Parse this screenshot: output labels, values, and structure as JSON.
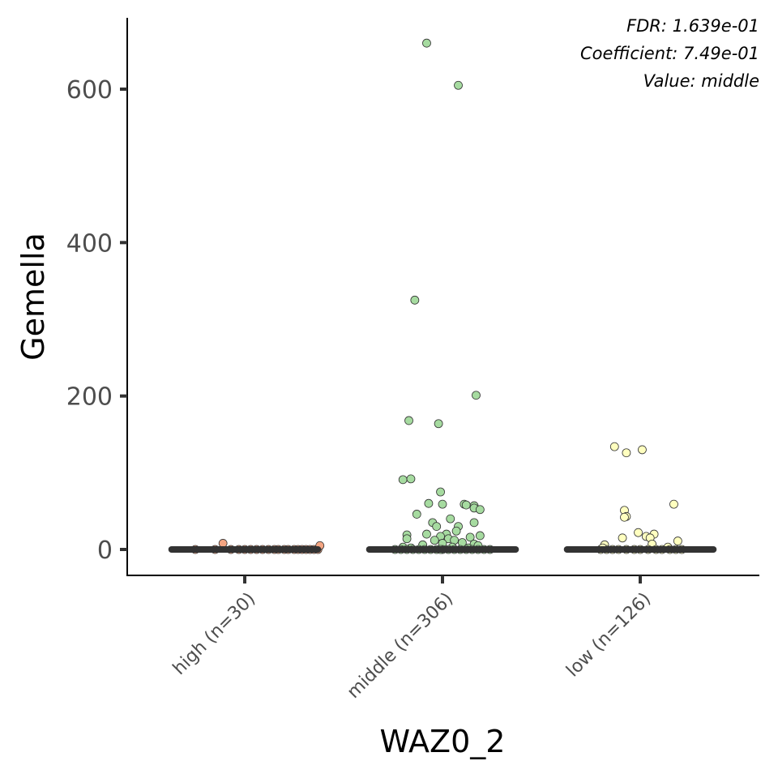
{
  "chart_data": {
    "type": "scatter",
    "subtype": "jitter-strip-with-median",
    "title": "",
    "xlabel": "WAZ0_2",
    "ylabel": "Gemella",
    "ylim": [
      -33,
      690
    ],
    "yticks": [
      0,
      200,
      400,
      600
    ],
    "grid": false,
    "legend": "none",
    "annotations": [
      "FDR: 1.639e-01",
      "Coefficient: 7.49e-01",
      "Value: middle"
    ],
    "categories": [
      "high (n=30)",
      "middle (n=306)",
      "low (n=126)"
    ],
    "colors": [
      "#F4A582",
      "#A6DBA0",
      "#FFFFBF"
    ],
    "medians": [
      0,
      0,
      0
    ],
    "series": [
      {
        "category": "high (n=30)",
        "points": [
          {
            "dx": -0.25,
            "y": 0
          },
          {
            "dx": -0.15,
            "y": 0
          },
          {
            "dx": -0.11,
            "y": 8
          },
          {
            "dx": -0.07,
            "y": 0
          },
          {
            "dx": -0.03,
            "y": 0
          },
          {
            "dx": 0.0,
            "y": 0
          },
          {
            "dx": 0.03,
            "y": 0
          },
          {
            "dx": 0.06,
            "y": 0
          },
          {
            "dx": 0.09,
            "y": 0
          },
          {
            "dx": 0.12,
            "y": 0
          },
          {
            "dx": 0.15,
            "y": 0
          },
          {
            "dx": 0.17,
            "y": 0
          },
          {
            "dx": 0.2,
            "y": 0
          },
          {
            "dx": 0.22,
            "y": 0
          },
          {
            "dx": 0.25,
            "y": 0
          },
          {
            "dx": 0.27,
            "y": 0
          },
          {
            "dx": 0.29,
            "y": 0
          },
          {
            "dx": 0.31,
            "y": 0
          },
          {
            "dx": 0.33,
            "y": 0
          },
          {
            "dx": 0.35,
            "y": 0
          },
          {
            "dx": 0.37,
            "y": 0
          },
          {
            "dx": 0.38,
            "y": 5
          }
        ]
      },
      {
        "category": "middle (n=306)",
        "points": [
          {
            "dx": -0.08,
            "y": 660
          },
          {
            "dx": 0.08,
            "y": 605
          },
          {
            "dx": -0.14,
            "y": 325
          },
          {
            "dx": 0.17,
            "y": 201
          },
          {
            "dx": -0.17,
            "y": 168
          },
          {
            "dx": -0.02,
            "y": 164
          },
          {
            "dx": -0.2,
            "y": 91
          },
          {
            "dx": -0.16,
            "y": 92
          },
          {
            "dx": -0.01,
            "y": 75
          },
          {
            "dx": -0.07,
            "y": 60
          },
          {
            "dx": 0.0,
            "y": 59
          },
          {
            "dx": 0.11,
            "y": 59
          },
          {
            "dx": 0.12,
            "y": 58
          },
          {
            "dx": 0.16,
            "y": 57
          },
          {
            "dx": 0.16,
            "y": 54
          },
          {
            "dx": 0.19,
            "y": 52
          },
          {
            "dx": -0.13,
            "y": 46
          },
          {
            "dx": 0.04,
            "y": 40
          },
          {
            "dx": 0.16,
            "y": 35
          },
          {
            "dx": -0.05,
            "y": 35
          },
          {
            "dx": -0.03,
            "y": 30
          },
          {
            "dx": 0.08,
            "y": 30
          },
          {
            "dx": 0.07,
            "y": 24
          },
          {
            "dx": -0.08,
            "y": 20
          },
          {
            "dx": 0.02,
            "y": 20
          },
          {
            "dx": -0.18,
            "y": 19
          },
          {
            "dx": 0.19,
            "y": 18
          },
          {
            "dx": -0.01,
            "y": 17
          },
          {
            "dx": 0.14,
            "y": 16
          },
          {
            "dx": 0.03,
            "y": 14
          },
          {
            "dx": -0.18,
            "y": 14
          },
          {
            "dx": 0.06,
            "y": 12
          },
          {
            "dx": -0.04,
            "y": 12
          },
          {
            "dx": 0.1,
            "y": 9
          },
          {
            "dx": 0.0,
            "y": 8
          },
          {
            "dx": 0.16,
            "y": 7
          },
          {
            "dx": -0.1,
            "y": 6
          },
          {
            "dx": 0.18,
            "y": 5
          },
          {
            "dx": -0.2,
            "y": 3
          },
          {
            "dx": 0.05,
            "y": 3
          },
          {
            "dx": -0.16,
            "y": 2
          },
          {
            "dx": 0.13,
            "y": 2
          },
          {
            "dx": -0.24,
            "y": 0
          },
          {
            "dx": -0.21,
            "y": 0
          },
          {
            "dx": -0.18,
            "y": 0
          },
          {
            "dx": -0.15,
            "y": 0
          },
          {
            "dx": -0.12,
            "y": 0
          },
          {
            "dx": -0.09,
            "y": 0
          },
          {
            "dx": -0.06,
            "y": 0
          },
          {
            "dx": -0.03,
            "y": 0
          },
          {
            "dx": 0.0,
            "y": 0
          },
          {
            "dx": 0.03,
            "y": 0
          },
          {
            "dx": 0.06,
            "y": 0
          },
          {
            "dx": 0.09,
            "y": 0
          },
          {
            "dx": 0.12,
            "y": 0
          },
          {
            "dx": 0.15,
            "y": 0
          },
          {
            "dx": 0.18,
            "y": 0
          },
          {
            "dx": 0.21,
            "y": 0
          },
          {
            "dx": 0.24,
            "y": 0
          },
          {
            "dx": -0.01,
            "y": 0
          }
        ]
      },
      {
        "category": "low (n=126)",
        "points": [
          {
            "dx": -0.13,
            "y": 134
          },
          {
            "dx": 0.01,
            "y": 130
          },
          {
            "dx": -0.07,
            "y": 126
          },
          {
            "dx": 0.17,
            "y": 59
          },
          {
            "dx": -0.08,
            "y": 51
          },
          {
            "dx": -0.07,
            "y": 43
          },
          {
            "dx": -0.08,
            "y": 42
          },
          {
            "dx": -0.01,
            "y": 22
          },
          {
            "dx": 0.07,
            "y": 20
          },
          {
            "dx": -0.09,
            "y": 15
          },
          {
            "dx": 0.03,
            "y": 17
          },
          {
            "dx": 0.05,
            "y": 15
          },
          {
            "dx": 0.19,
            "y": 11
          },
          {
            "dx": -0.18,
            "y": 6
          },
          {
            "dx": 0.06,
            "y": 7
          },
          {
            "dx": 0.14,
            "y": 3
          },
          {
            "dx": -0.2,
            "y": 0
          },
          {
            "dx": -0.17,
            "y": 0
          },
          {
            "dx": -0.14,
            "y": 0
          },
          {
            "dx": -0.11,
            "y": 0
          },
          {
            "dx": -0.07,
            "y": 0
          },
          {
            "dx": -0.03,
            "y": 0
          },
          {
            "dx": 0.0,
            "y": 0
          },
          {
            "dx": 0.04,
            "y": 0
          },
          {
            "dx": 0.08,
            "y": 0
          },
          {
            "dx": 0.11,
            "y": 0
          },
          {
            "dx": 0.15,
            "y": 0
          },
          {
            "dx": 0.18,
            "y": 0
          },
          {
            "dx": 0.21,
            "y": 0
          },
          {
            "dx": -0.19,
            "y": 2
          }
        ]
      }
    ]
  }
}
